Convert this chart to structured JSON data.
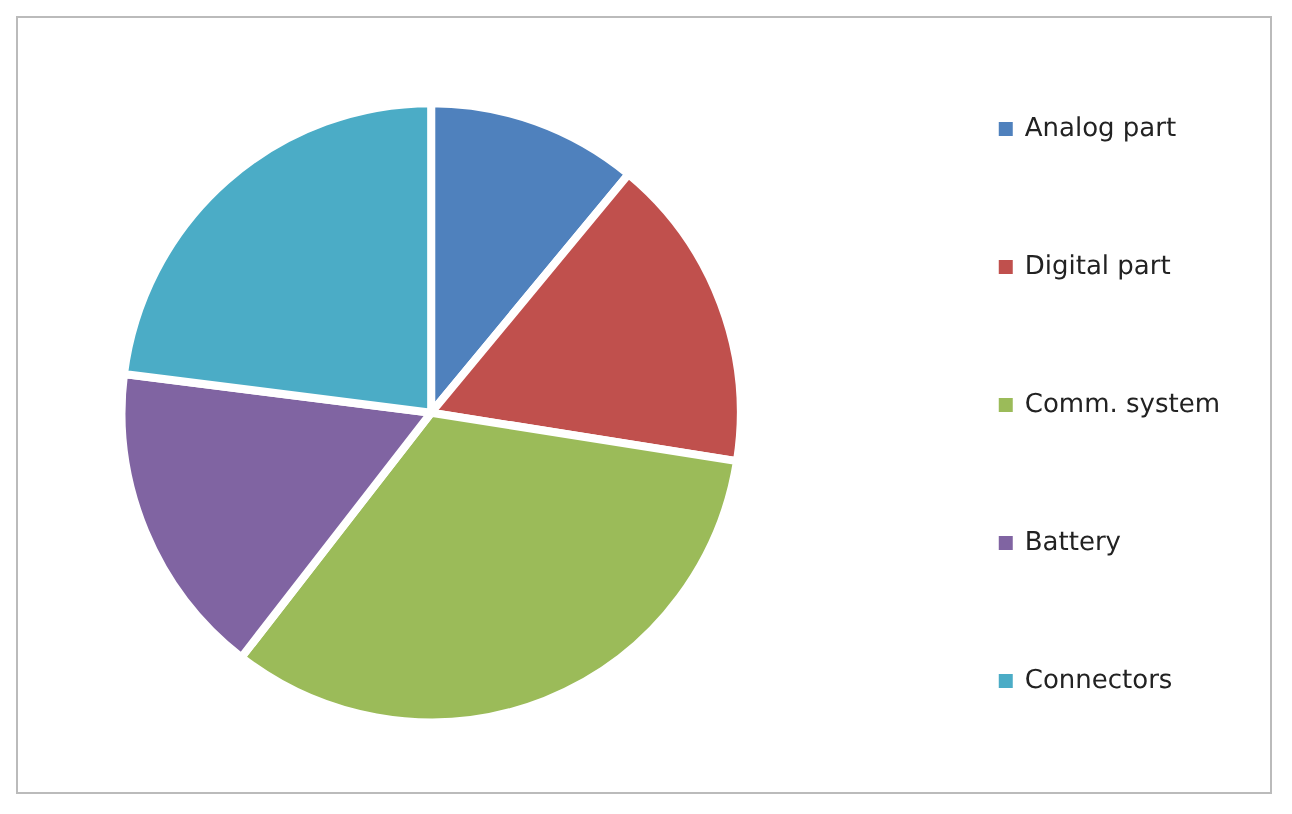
{
  "chart_data": {
    "type": "pie",
    "categories": [
      "Analog part",
      "Digital part",
      "Comm. system",
      "Battery",
      "Connectors"
    ],
    "values": [
      11,
      16.5,
      33,
      16.5,
      23
    ],
    "colors": [
      "#4f81bd",
      "#c0504d",
      "#9bbb59",
      "#8064a2",
      "#4bacc6"
    ],
    "legend": "right"
  }
}
